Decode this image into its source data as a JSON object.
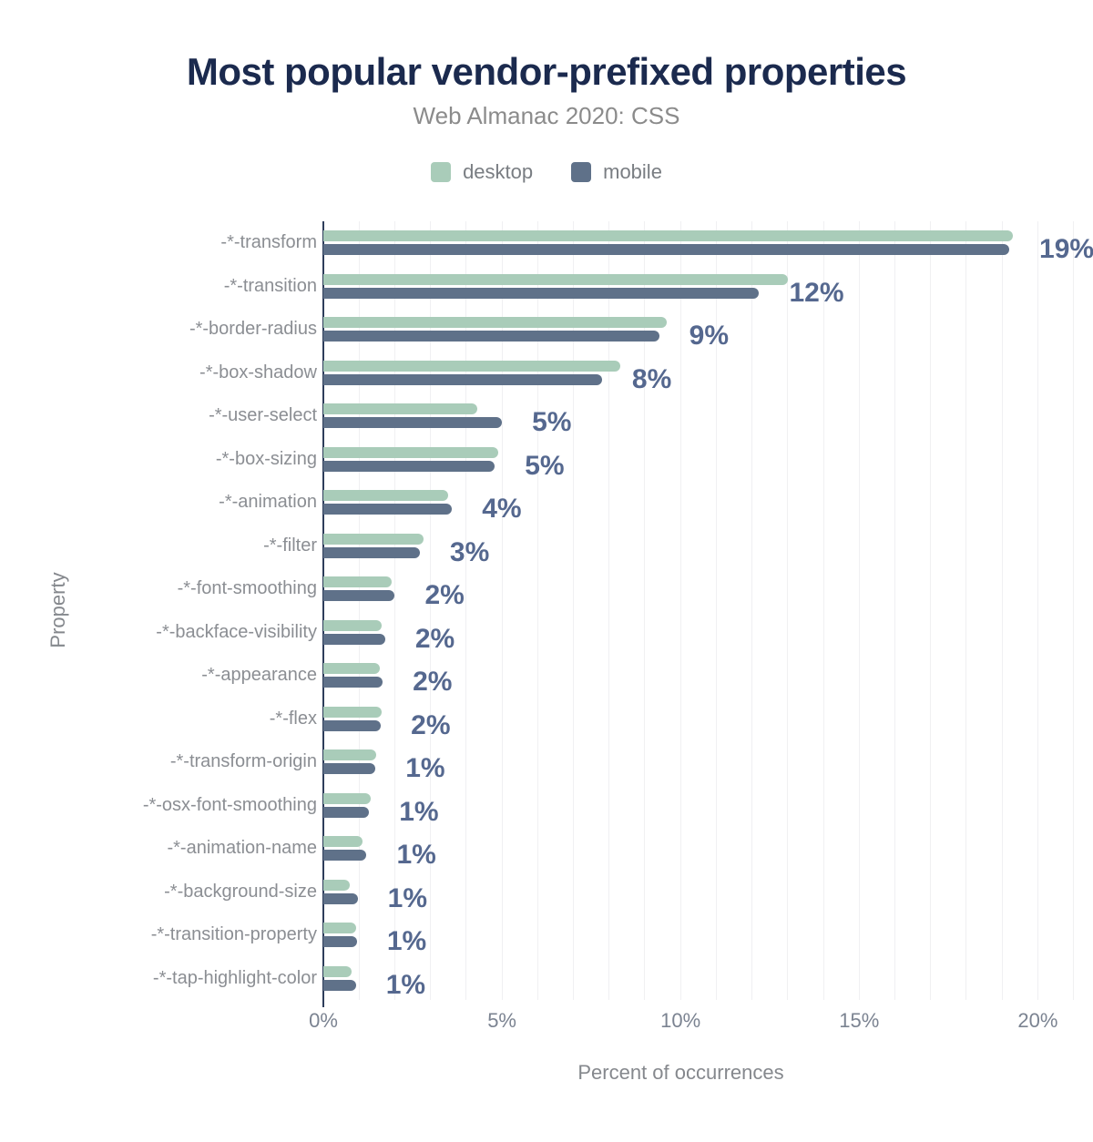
{
  "chart_data": {
    "type": "bar",
    "orientation": "horizontal",
    "title": "Most popular vendor-prefixed properties",
    "subtitle": "Web Almanac 2020: CSS",
    "xlabel": "Percent of occurrences",
    "ylabel": "Property",
    "xlim": [
      0,
      20
    ],
    "grid": "vertical gridlines every 1%",
    "legend_position": "top-center",
    "x_ticks": [
      {
        "label": "0%",
        "value": 0
      },
      {
        "label": "5%",
        "value": 5
      },
      {
        "label": "10%",
        "value": 10
      },
      {
        "label": "15%",
        "value": 15
      },
      {
        "label": "20%",
        "value": 20
      }
    ],
    "categories": [
      "-*-transform",
      "-*-transition",
      "-*-border-radius",
      "-*-box-shadow",
      "-*-user-select",
      "-*-box-sizing",
      "-*-animation",
      "-*-filter",
      "-*-font-smoothing",
      "-*-backface-visibility",
      "-*-appearance",
      "-*-flex",
      "-*-transform-origin",
      "-*-osx-font-smoothing",
      "-*-animation-name",
      "-*-background-size",
      "-*-transition-property",
      "-*-tap-highlight-color"
    ],
    "series": [
      {
        "name": "desktop",
        "color": "#a9ccb9",
        "values": [
          19.3,
          13.0,
          9.6,
          8.3,
          4.3,
          4.9,
          3.5,
          2.8,
          1.9,
          1.64,
          1.57,
          1.63,
          1.48,
          1.33,
          1.09,
          0.73,
          0.92,
          0.8
        ]
      },
      {
        "name": "mobile",
        "color": "#5f7189",
        "values": [
          19.2,
          12.2,
          9.4,
          7.8,
          5.0,
          4.8,
          3.6,
          2.7,
          2.0,
          1.73,
          1.66,
          1.61,
          1.46,
          1.28,
          1.21,
          0.96,
          0.94,
          0.91
        ]
      }
    ],
    "bar_labels": [
      "19%",
      "12%",
      "9%",
      "8%",
      "5%",
      "5%",
      "4%",
      "3%",
      "2%",
      "2%",
      "2%",
      "2%",
      "1%",
      "1%",
      "1%",
      "1%",
      "1%",
      "1%"
    ],
    "colors": {
      "title": "#1b2a4e",
      "annotation": "#55688f",
      "axis_line": "#2e3d5b",
      "gridline": "#f0f0f2"
    }
  }
}
